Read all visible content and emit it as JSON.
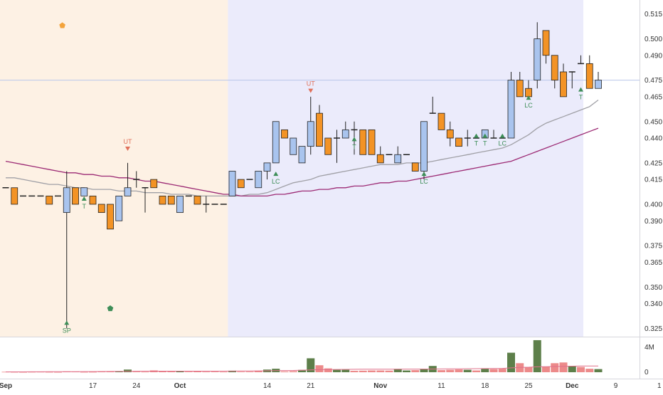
{
  "chart_data": {
    "type": "candlestick",
    "price_axis": {
      "ticks": [
        "0.515",
        "0.500",
        "0.490",
        "0.475",
        "0.465",
        "0.450",
        "0.440",
        "0.425",
        "0.415",
        "0.400",
        "0.390",
        "0.375",
        "0.365",
        "0.350",
        "0.340",
        "0.325"
      ],
      "ylim": [
        0.32,
        0.52
      ],
      "crosshair_level": 0.475
    },
    "volume_axis": {
      "ticks": [
        "4M",
        "0"
      ],
      "max": 4800000
    },
    "time_axis": {
      "labels": [
        {
          "text": "Sep",
          "index": 0,
          "bold": true
        },
        {
          "text": "17",
          "index": 10,
          "bold": false
        },
        {
          "text": "24",
          "index": 15,
          "bold": false
        },
        {
          "text": "Oct",
          "index": 20,
          "bold": true
        },
        {
          "text": "14",
          "index": 30,
          "bold": false
        },
        {
          "text": "21",
          "index": 35,
          "bold": false
        },
        {
          "text": "Nov",
          "index": 43,
          "bold": true
        },
        {
          "text": "11",
          "index": 50,
          "bold": false
        },
        {
          "text": "18",
          "index": 55,
          "bold": false
        },
        {
          "text": "25",
          "index": 60,
          "bold": false
        },
        {
          "text": "Dec",
          "index": 65,
          "bold": true
        },
        {
          "text": "9",
          "index": 70,
          "bold": false
        },
        {
          "text": "1",
          "index": 75,
          "bold": false
        }
      ]
    },
    "shading": [
      {
        "from": -2.5,
        "to": 25.5,
        "color": "#fdf1e4"
      },
      {
        "from": 25.5,
        "to": 68.5,
        "color": "#ebebfb"
      }
    ],
    "candles": [
      [
        0.41,
        0.41,
        0.41,
        0.41
      ],
      [
        0.41,
        0.41,
        0.4,
        0.4
      ],
      [
        0.405,
        0.405,
        0.405,
        0.405
      ],
      [
        0.405,
        0.405,
        0.405,
        0.405
      ],
      [
        0.405,
        0.405,
        0.405,
        0.405
      ],
      [
        0.405,
        0.405,
        0.4,
        0.4
      ],
      [
        0.405,
        0.405,
        0.405,
        0.405
      ],
      [
        0.395,
        0.42,
        0.325,
        0.41
      ],
      [
        0.41,
        0.41,
        0.4,
        0.4
      ],
      [
        0.405,
        0.41,
        0.405,
        0.41
      ],
      [
        0.405,
        0.405,
        0.4,
        0.4
      ],
      [
        0.4,
        0.4,
        0.395,
        0.395
      ],
      [
        0.4,
        0.4,
        0.385,
        0.385
      ],
      [
        0.39,
        0.405,
        0.39,
        0.405
      ],
      [
        0.405,
        0.425,
        0.405,
        0.41
      ],
      [
        0.415,
        0.42,
        0.41,
        0.415
      ],
      [
        0.41,
        0.41,
        0.395,
        0.41
      ],
      [
        0.415,
        0.415,
        0.41,
        0.41
      ],
      [
        0.405,
        0.405,
        0.4,
        0.4
      ],
      [
        0.405,
        0.405,
        0.4,
        0.4
      ],
      [
        0.395,
        0.405,
        0.395,
        0.405
      ],
      [
        0.405,
        0.405,
        0.405,
        0.405
      ],
      [
        0.405,
        0.405,
        0.4,
        0.4
      ],
      [
        0.4,
        0.405,
        0.395,
        0.4
      ],
      [
        0.4,
        0.4,
        0.4,
        0.4
      ],
      [
        0.4,
        0.4,
        0.4,
        0.4
      ],
      [
        0.405,
        0.42,
        0.405,
        0.42
      ],
      [
        0.415,
        0.415,
        0.41,
        0.41
      ],
      [
        0.415,
        0.415,
        0.415,
        0.415
      ],
      [
        0.41,
        0.42,
        0.41,
        0.42
      ],
      [
        0.42,
        0.425,
        0.415,
        0.425
      ],
      [
        0.425,
        0.45,
        0.425,
        0.45
      ],
      [
        0.445,
        0.445,
        0.44,
        0.44
      ],
      [
        0.43,
        0.44,
        0.43,
        0.44
      ],
      [
        0.425,
        0.435,
        0.425,
        0.435
      ],
      [
        0.435,
        0.465,
        0.43,
        0.45
      ],
      [
        0.455,
        0.46,
        0.435,
        0.435
      ],
      [
        0.44,
        0.44,
        0.43,
        0.43
      ],
      [
        0.44,
        0.445,
        0.425,
        0.44
      ],
      [
        0.44,
        0.45,
        0.44,
        0.445
      ],
      [
        0.445,
        0.45,
        0.43,
        0.445
      ],
      [
        0.445,
        0.445,
        0.43,
        0.43
      ],
      [
        0.445,
        0.445,
        0.43,
        0.43
      ],
      [
        0.43,
        0.435,
        0.425,
        0.425
      ],
      [
        0.43,
        0.43,
        0.43,
        0.43
      ],
      [
        0.425,
        0.435,
        0.425,
        0.43
      ],
      [
        0.43,
        0.43,
        0.43,
        0.43
      ],
      [
        0.425,
        0.425,
        0.42,
        0.42
      ],
      [
        0.42,
        0.45,
        0.415,
        0.45
      ],
      [
        0.455,
        0.465,
        0.455,
        0.455
      ],
      [
        0.455,
        0.455,
        0.445,
        0.445
      ],
      [
        0.445,
        0.45,
        0.435,
        0.44
      ],
      [
        0.44,
        0.44,
        0.435,
        0.435
      ],
      [
        0.44,
        0.445,
        0.435,
        0.44
      ],
      [
        0.44,
        0.44,
        0.44,
        0.44
      ],
      [
        0.44,
        0.445,
        0.44,
        0.445
      ],
      [
        0.44,
        0.445,
        0.44,
        0.44
      ],
      [
        0.44,
        0.44,
        0.44,
        0.44
      ],
      [
        0.44,
        0.48,
        0.44,
        0.475
      ],
      [
        0.475,
        0.48,
        0.465,
        0.465
      ],
      [
        0.47,
        0.475,
        0.465,
        0.465
      ],
      [
        0.475,
        0.51,
        0.47,
        0.5
      ],
      [
        0.505,
        0.505,
        0.485,
        0.49
      ],
      [
        0.49,
        0.49,
        0.47,
        0.475
      ],
      [
        0.48,
        0.485,
        0.465,
        0.465
      ],
      [
        0.48,
        0.48,
        0.47,
        0.48
      ],
      [
        0.485,
        0.49,
        0.485,
        0.485
      ],
      [
        0.485,
        0.49,
        0.47,
        0.47
      ],
      [
        0.47,
        0.48,
        0.47,
        0.475
      ]
    ],
    "moving_averages": [
      {
        "color": "#a0a0a6",
        "values": [
          0.416,
          0.416,
          0.415,
          0.414,
          0.413,
          0.412,
          0.412,
          0.411,
          0.41,
          0.41,
          0.409,
          0.409,
          0.409,
          0.408,
          0.408,
          0.408,
          0.407,
          0.407,
          0.407,
          0.406,
          0.406,
          0.406,
          0.405,
          0.405,
          0.405,
          0.405,
          0.405,
          0.405,
          0.406,
          0.406,
          0.407,
          0.409,
          0.411,
          0.413,
          0.414,
          0.415,
          0.417,
          0.418,
          0.419,
          0.42,
          0.421,
          0.422,
          0.423,
          0.424,
          0.424,
          0.424,
          0.425,
          0.425,
          0.425,
          0.426,
          0.427,
          0.428,
          0.429,
          0.43,
          0.431,
          0.432,
          0.433,
          0.434,
          0.436,
          0.439,
          0.442,
          0.446,
          0.449,
          0.451,
          0.453,
          0.455,
          0.457,
          0.459,
          0.463
        ]
      },
      {
        "color": "#9c2a74",
        "values": [
          0.426,
          0.425,
          0.424,
          0.423,
          0.422,
          0.421,
          0.42,
          0.419,
          0.419,
          0.418,
          0.418,
          0.417,
          0.417,
          0.416,
          0.416,
          0.415,
          0.414,
          0.414,
          0.413,
          0.412,
          0.411,
          0.41,
          0.409,
          0.408,
          0.407,
          0.406,
          0.406,
          0.405,
          0.405,
          0.405,
          0.405,
          0.406,
          0.406,
          0.407,
          0.408,
          0.408,
          0.409,
          0.409,
          0.41,
          0.41,
          0.411,
          0.411,
          0.412,
          0.413,
          0.413,
          0.414,
          0.414,
          0.415,
          0.416,
          0.417,
          0.418,
          0.419,
          0.42,
          0.421,
          0.422,
          0.423,
          0.424,
          0.425,
          0.426,
          0.428,
          0.43,
          0.432,
          0.434,
          0.436,
          0.438,
          0.44,
          0.442,
          0.444,
          0.446
        ]
      }
    ],
    "volumes": [
      [
        60000,
        0
      ],
      [
        40000,
        0
      ],
      [
        30000,
        0
      ],
      [
        50000,
        0
      ],
      [
        60000,
        0
      ],
      [
        40000,
        0
      ],
      [
        30000,
        0
      ],
      [
        120000,
        0
      ],
      [
        90000,
        0
      ],
      [
        40000,
        0
      ],
      [
        50000,
        0
      ],
      [
        130000,
        0
      ],
      [
        150000,
        0
      ],
      [
        120000,
        1
      ],
      [
        380000,
        1
      ],
      [
        80000,
        0
      ],
      [
        60000,
        0
      ],
      [
        260000,
        0
      ],
      [
        170000,
        0
      ],
      [
        100000,
        0
      ],
      [
        140000,
        1
      ],
      [
        80000,
        0
      ],
      [
        100000,
        0
      ],
      [
        70000,
        0
      ],
      [
        80000,
        0
      ],
      [
        60000,
        0
      ],
      [
        220000,
        1
      ],
      [
        80000,
        0
      ],
      [
        90000,
        0
      ],
      [
        180000,
        0
      ],
      [
        380000,
        1
      ],
      [
        500000,
        1
      ],
      [
        120000,
        0
      ],
      [
        160000,
        0
      ],
      [
        330000,
        1
      ],
      [
        2000000,
        1
      ],
      [
        1000000,
        0
      ],
      [
        550000,
        0
      ],
      [
        350000,
        1
      ],
      [
        350000,
        1
      ],
      [
        200000,
        0
      ],
      [
        220000,
        0
      ],
      [
        250000,
        0
      ],
      [
        250000,
        0
      ],
      [
        230000,
        0
      ],
      [
        480000,
        1
      ],
      [
        250000,
        1
      ],
      [
        300000,
        0
      ],
      [
        500000,
        1
      ],
      [
        900000,
        1
      ],
      [
        300000,
        0
      ],
      [
        350000,
        0
      ],
      [
        400000,
        0
      ],
      [
        350000,
        1
      ],
      [
        250000,
        0
      ],
      [
        550000,
        1
      ],
      [
        450000,
        0
      ],
      [
        500000,
        0
      ],
      [
        2800000,
        1
      ],
      [
        1300000,
        0
      ],
      [
        750000,
        0
      ],
      [
        4600000,
        1
      ],
      [
        800000,
        0
      ],
      [
        1300000,
        0
      ],
      [
        1400000,
        0
      ],
      [
        900000,
        1
      ],
      [
        750000,
        0
      ],
      [
        500000,
        0
      ],
      [
        450000,
        1
      ]
    ],
    "volume_ma": [
      50000,
      50000,
      50000,
      60000,
      60000,
      70000,
      70000,
      80000,
      80000,
      90000,
      90000,
      100000,
      110000,
      120000,
      130000,
      140000,
      150000,
      150000,
      150000,
      150000,
      150000,
      150000,
      150000,
      150000,
      150000,
      150000,
      160000,
      170000,
      180000,
      190000,
      200000,
      220000,
      240000,
      260000,
      300000,
      340000,
      370000,
      390000,
      400000,
      410000,
      420000,
      430000,
      440000,
      440000,
      440000,
      440000,
      450000,
      450000,
      450000,
      460000,
      470000,
      480000,
      490000,
      500000,
      510000,
      520000,
      530000,
      550000,
      620000,
      680000,
      720000,
      780000,
      800000,
      830000,
      850000,
      870000,
      890000,
      900000,
      900000
    ],
    "markers": [
      {
        "index": 6.5,
        "price": 0.508,
        "shape": "pentagon",
        "color": "#f3a33b",
        "text": ""
      },
      {
        "index": 12,
        "price": 0.337,
        "shape": "pentagon",
        "color": "#3e8e58",
        "text": ""
      },
      {
        "index": 7,
        "price": 0.328,
        "shape": "triangle-up",
        "color": "#3e8e58",
        "text": "SP"
      },
      {
        "index": 9,
        "price": 0.403,
        "shape": "triangle-up",
        "color": "#3e8e58",
        "text": "T"
      },
      {
        "index": 14,
        "price": 0.434,
        "shape": "triangle-down",
        "color": "#e0705a",
        "text": "UT"
      },
      {
        "index": 31,
        "price": 0.418,
        "shape": "triangle-up",
        "color": "#3e8e58",
        "text": "LC"
      },
      {
        "index": 35,
        "price": 0.469,
        "shape": "triangle-down",
        "color": "#e0705a",
        "text": "UT"
      },
      {
        "index": 40,
        "price": 0.439,
        "shape": "triangle-up",
        "color": "#3e8e58",
        "text": "T"
      },
      {
        "index": 48,
        "price": 0.418,
        "shape": "triangle-up",
        "color": "#3e8e58",
        "text": "LC"
      },
      {
        "index": 54,
        "price": 0.441,
        "shape": "triangle-up",
        "color": "#3e8e58",
        "text": "T"
      },
      {
        "index": 55,
        "price": 0.441,
        "shape": "triangle-up",
        "color": "#3e8e58",
        "text": "T"
      },
      {
        "index": 57,
        "price": 0.441,
        "shape": "triangle-up",
        "color": "#3e8e58",
        "text": "LC"
      },
      {
        "index": 60,
        "price": 0.464,
        "shape": "triangle-up",
        "color": "#3e8e58",
        "text": "LC"
      },
      {
        "index": 66,
        "price": 0.469,
        "shape": "triangle-up",
        "color": "#3e8e58",
        "text": "T"
      }
    ],
    "colors": {
      "up_body": "#a9c4ee",
      "down_body": "#f39325",
      "doji": "#222222",
      "vol_up": "#5d7f4a",
      "vol_down": "#ec8a8a",
      "vol_ma": "#e0708a",
      "crosshair": "#b9c6ea",
      "axis_text": "#333333"
    }
  }
}
